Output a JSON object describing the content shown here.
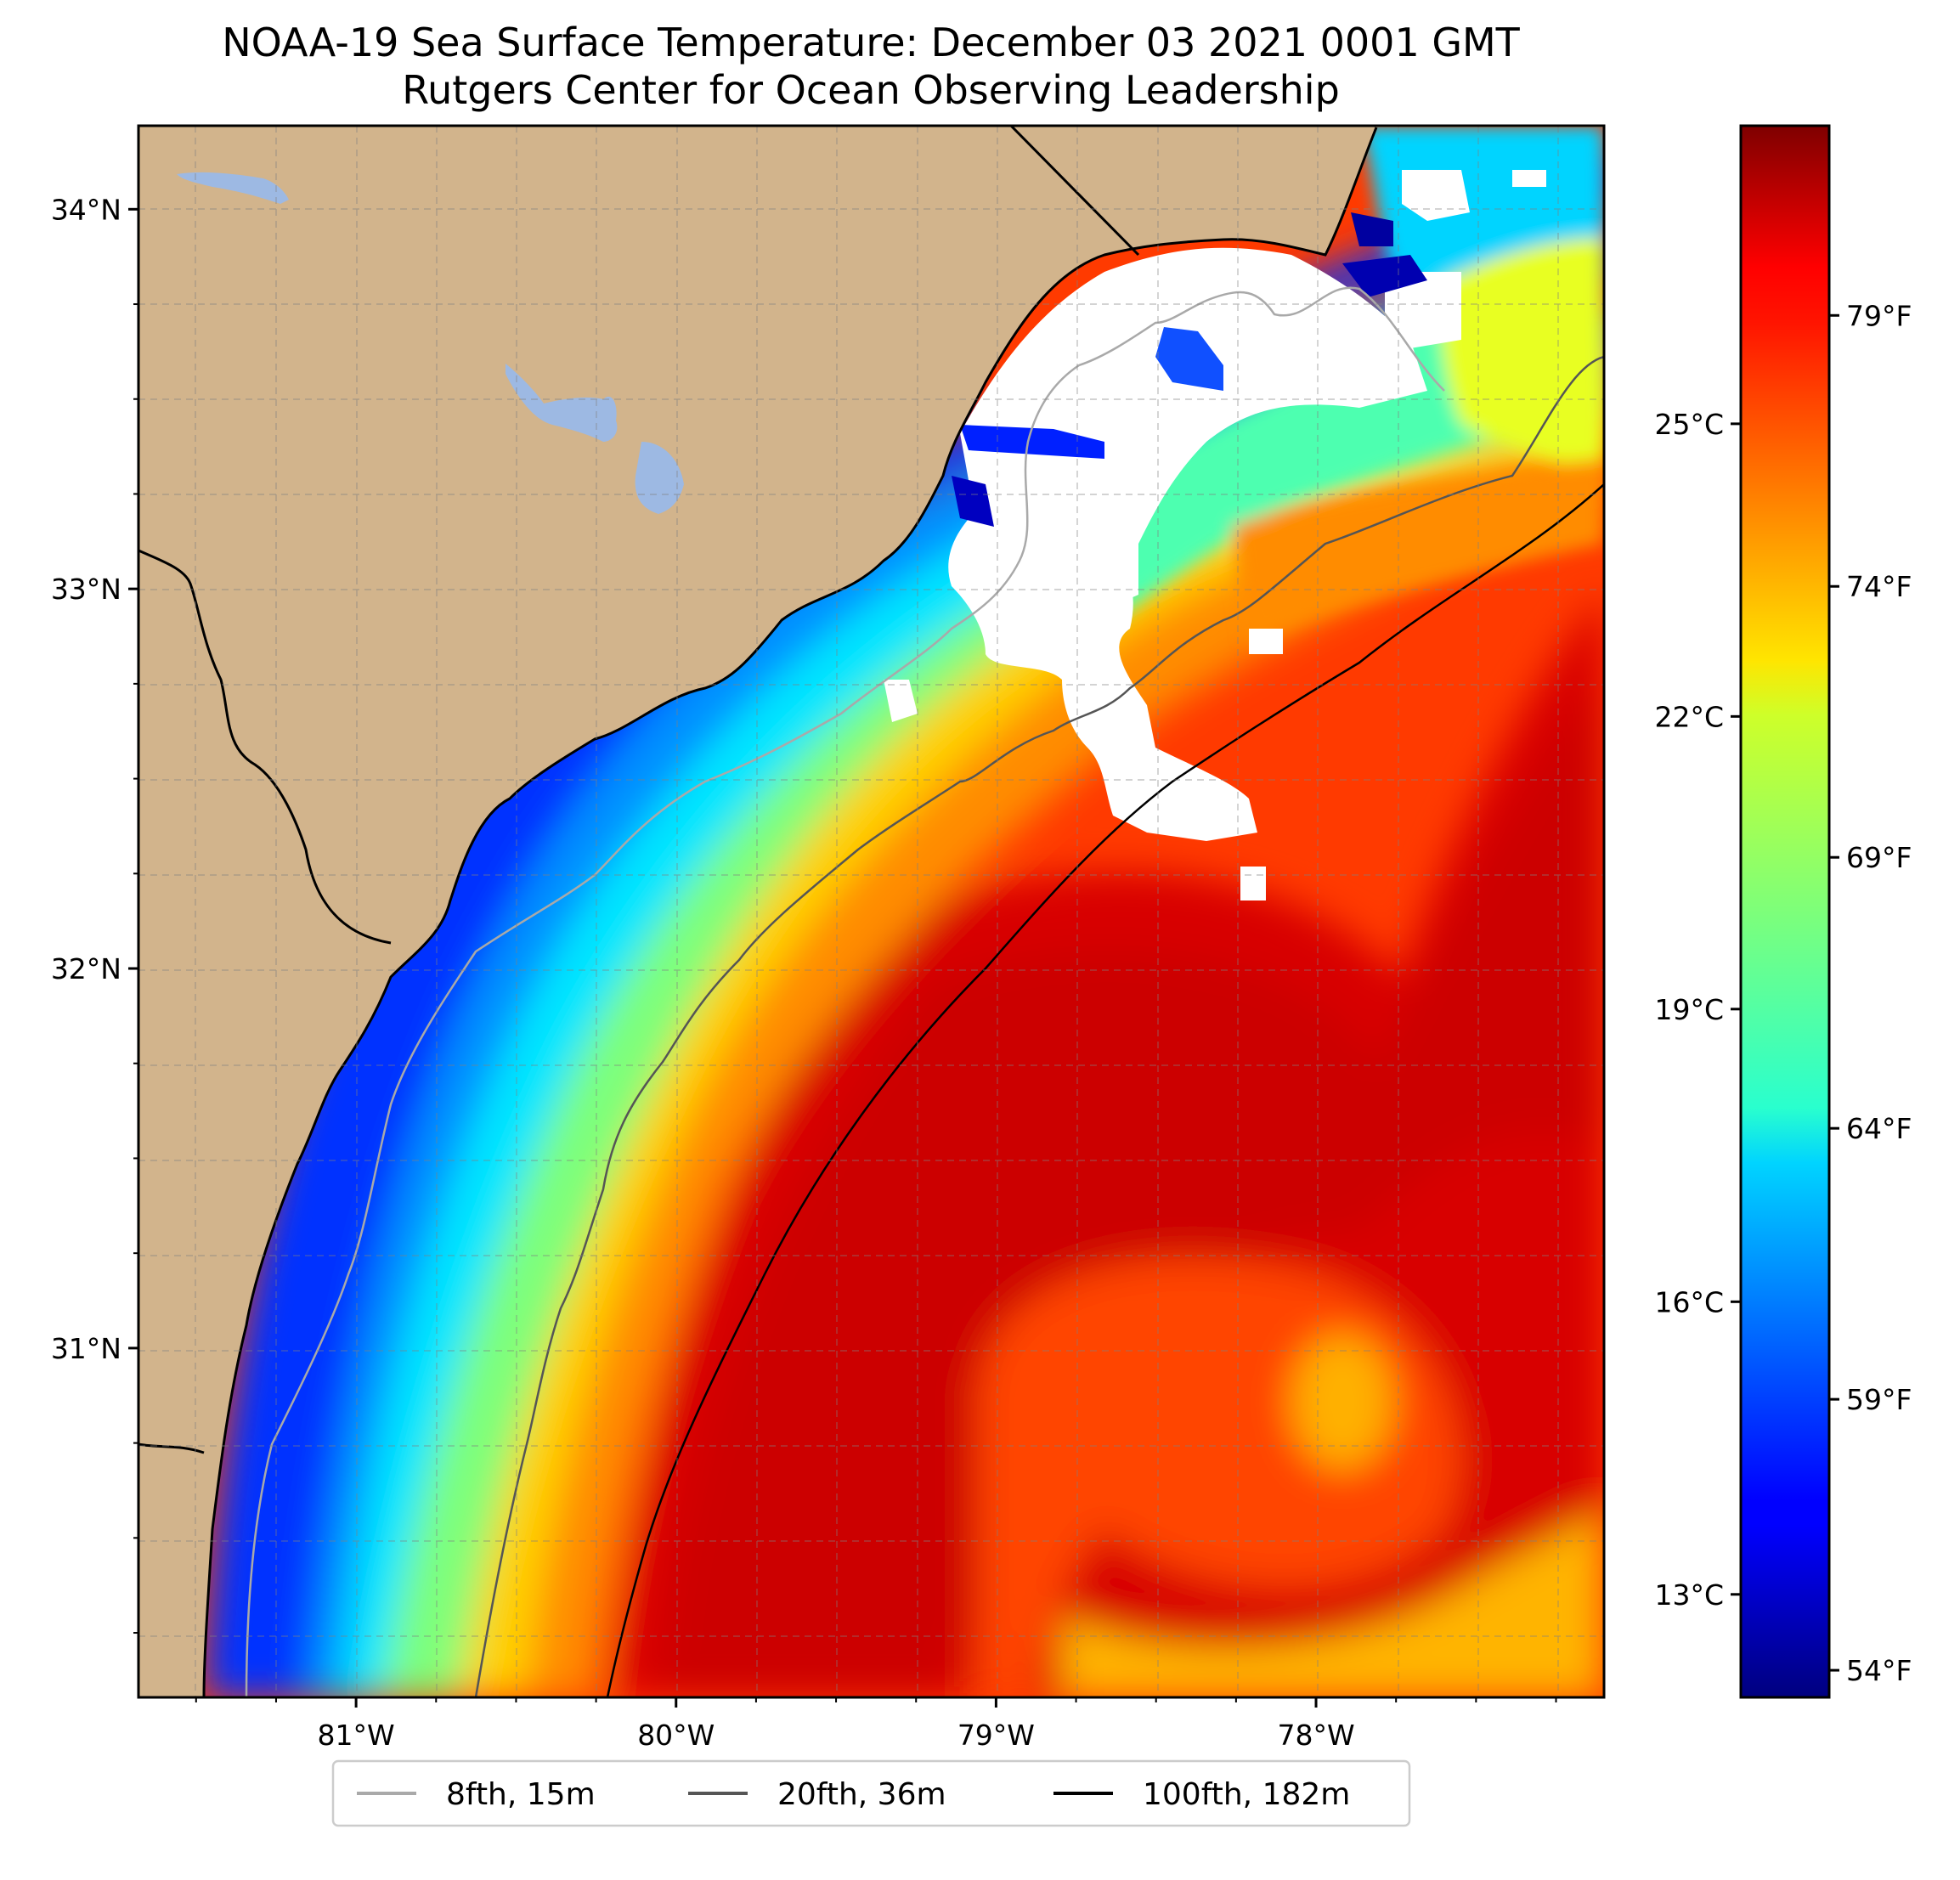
{
  "title": {
    "line1": "NOAA-19 Sea Surface Temperature: December 03 2021 0001 GMT",
    "line2": "Rutgers Center for Ocean Observing Leadership"
  },
  "map": {
    "lat_ticks": [
      {
        "value": 34,
        "label": "34°N"
      },
      {
        "value": 33,
        "label": "33°N"
      },
      {
        "value": 32,
        "label": "32°N"
      },
      {
        "value": 31,
        "label": "31°N"
      }
    ],
    "lon_ticks": [
      {
        "value": -81,
        "label": "81°W"
      },
      {
        "value": -80,
        "label": "80°W"
      },
      {
        "value": -79,
        "label": "79°W"
      },
      {
        "value": -78,
        "label": "78°W"
      }
    ],
    "lon_range": [
      -81.68,
      -77.1
    ],
    "lat_range": [
      30.08,
      34.22
    ],
    "land_color": "#D2B48C",
    "lake_color": "#9DB9E3",
    "cloud_color": "#FFFFFF"
  },
  "colorbar": {
    "colormap": "jet",
    "range_f": [
      53.5,
      82.5
    ],
    "f_ticks": [
      {
        "value": 79,
        "label": "79°F"
      },
      {
        "value": 74,
        "label": "74°F"
      },
      {
        "value": 69,
        "label": "69°F"
      },
      {
        "value": 64,
        "label": "64°F"
      },
      {
        "value": 59,
        "label": "59°F"
      },
      {
        "value": 54,
        "label": "54°F"
      }
    ],
    "c_ticks": [
      {
        "value": 25,
        "label": "25°C"
      },
      {
        "value": 22,
        "label": "22°C"
      },
      {
        "value": 19,
        "label": "19°C"
      },
      {
        "value": 16,
        "label": "16°C"
      },
      {
        "value": 13,
        "label": "13°C"
      }
    ]
  },
  "legend": {
    "items": [
      {
        "label": "8fth, 15m",
        "color": "#A9A9A9"
      },
      {
        "label": "20fth, 36m",
        "color": "#555555"
      },
      {
        "label": "100fth, 182m",
        "color": "#000000"
      }
    ]
  }
}
